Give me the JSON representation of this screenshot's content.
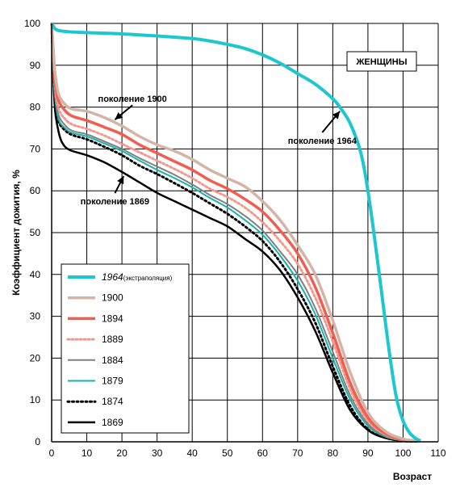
{
  "chart_data": {
    "type": "line",
    "title": "",
    "xlabel": "Возраст",
    "ylabel": "Коэффициент дожития, %",
    "xlim": [
      0,
      110
    ],
    "ylim": [
      0,
      100
    ],
    "xticks": [
      0,
      10,
      20,
      30,
      40,
      50,
      60,
      70,
      80,
      90,
      100,
      110
    ],
    "yticks": [
      0,
      10,
      20,
      30,
      40,
      50,
      60,
      70,
      80,
      90,
      100
    ],
    "grid": true,
    "box_label": "ЖЕНЩИНЫ",
    "legend_position": "bottom-left",
    "annotations": [
      {
        "text": "поколение 1900",
        "x": 23,
        "y": 82,
        "arrow_to": [
          18,
          77
        ]
      },
      {
        "text": "поколение 1964",
        "x": 77,
        "y": 72,
        "arrow_to": [
          82,
          79
        ]
      },
      {
        "text": "поколение 1869",
        "x": 18,
        "y": 57.5,
        "arrow_to": [
          20.5,
          63.5
        ]
      }
    ],
    "series": [
      {
        "name": "1964",
        "name_suffix": "(экстраполяция)",
        "italic": true,
        "color": "#1CC7D0",
        "width": 4,
        "dash": "",
        "x": [
          0,
          0.5,
          1,
          2,
          5,
          10,
          20,
          30,
          40,
          45,
          50,
          55,
          60,
          65,
          70,
          75,
          80,
          82,
          85,
          88,
          90,
          92,
          94,
          96,
          98,
          100,
          102,
          104,
          105
        ],
        "y": [
          100,
          99.3,
          98.7,
          98.3,
          98.0,
          97.8,
          97.5,
          97.0,
          96.4,
          95.8,
          95.0,
          94.0,
          92.5,
          90.5,
          88.0,
          85.5,
          82.0,
          80.0,
          76.0,
          69.0,
          60.0,
          48.0,
          35.0,
          22.0,
          11.0,
          5.0,
          2.0,
          0.6,
          0.3
        ]
      },
      {
        "name": "1900",
        "name_suffix": "",
        "italic": false,
        "color": "#D4B4A6",
        "width": 3.5,
        "dash": "",
        "x": [
          0,
          0.5,
          1,
          2,
          4,
          6,
          10,
          15,
          20,
          25,
          30,
          35,
          40,
          45,
          50,
          55,
          60,
          65,
          70,
          75,
          80,
          85,
          90,
          95,
          100,
          104
        ],
        "y": [
          100,
          93.5,
          88.0,
          83.0,
          80.5,
          79.5,
          79.0,
          77.5,
          75.5,
          73.0,
          71.0,
          69.5,
          67.5,
          65.0,
          63.0,
          61.0,
          57.5,
          53.0,
          47.0,
          40.0,
          29.0,
          16.5,
          7.0,
          2.5,
          0.7,
          0.3
        ]
      },
      {
        "name": "1894",
        "name_suffix": "",
        "italic": false,
        "color": "#F25D50",
        "width": 3.5,
        "dash": "",
        "x": [
          0,
          0.5,
          1,
          2,
          4,
          6,
          10,
          15,
          20,
          25,
          30,
          35,
          40,
          45,
          50,
          55,
          60,
          65,
          70,
          75,
          80,
          85,
          90,
          95,
          100,
          104
        ],
        "y": [
          100,
          92.0,
          86.0,
          81.5,
          79.0,
          77.8,
          76.8,
          75.2,
          73.5,
          71.0,
          69.0,
          67.0,
          65.0,
          62.5,
          60.5,
          58.0,
          55.0,
          50.5,
          45.0,
          37.0,
          26.0,
          14.0,
          5.8,
          2.0,
          0.5,
          0.2
        ]
      },
      {
        "name": "1889",
        "name_suffix": "",
        "italic": false,
        "color": "#F4978D",
        "width": 3,
        "dash": "2,3",
        "x": [
          0,
          0.5,
          1,
          2,
          4,
          6,
          10,
          15,
          20,
          25,
          30,
          35,
          40,
          45,
          50,
          55,
          60,
          65,
          70,
          75,
          80,
          85,
          90,
          95,
          100,
          104
        ],
        "y": [
          100,
          91.0,
          84.5,
          79.5,
          77.0,
          75.8,
          74.8,
          73.2,
          71.2,
          69.2,
          67.2,
          65.2,
          63.0,
          60.5,
          58.5,
          56.0,
          52.5,
          48.0,
          42.5,
          34.5,
          24.0,
          12.5,
          5.0,
          1.7,
          0.4,
          0.2
        ]
      },
      {
        "name": "1884",
        "name_suffix": "",
        "italic": false,
        "color": "#808080",
        "width": 2,
        "dash": "",
        "x": [
          0,
          0.5,
          1,
          2,
          4,
          6,
          10,
          15,
          20,
          25,
          30,
          35,
          40,
          45,
          50,
          55,
          60,
          65,
          70,
          75,
          80,
          85,
          90,
          95,
          100,
          104
        ],
        "y": [
          100,
          90.0,
          83.0,
          78.0,
          75.5,
          74.3,
          73.5,
          71.8,
          70.0,
          67.8,
          65.8,
          63.8,
          61.5,
          59.0,
          56.8,
          54.0,
          50.5,
          45.5,
          40.0,
          32.0,
          21.5,
          11.0,
          4.3,
          1.4,
          0.3,
          0.1
        ]
      },
      {
        "name": "1879",
        "name_suffix": "",
        "italic": false,
        "color": "#17B3AB",
        "width": 2,
        "dash": "",
        "x": [
          0,
          0.5,
          1,
          2,
          4,
          6,
          10,
          15,
          20,
          25,
          30,
          35,
          40,
          45,
          50,
          55,
          60,
          65,
          70,
          75,
          80,
          85,
          90,
          95,
          100,
          104
        ],
        "y": [
          100,
          89.0,
          82.0,
          77.0,
          74.8,
          73.8,
          73.0,
          71.3,
          69.5,
          67.2,
          65.0,
          63.0,
          60.8,
          58.3,
          56.0,
          53.0,
          49.5,
          44.5,
          38.5,
          30.5,
          20.0,
          10.0,
          3.8,
          1.2,
          0.3,
          0.1
        ]
      },
      {
        "name": "1874",
        "name_suffix": "",
        "italic": false,
        "color": "#000000",
        "width": 3,
        "dash": "2,3.5",
        "x": [
          0,
          0.5,
          1,
          2,
          4,
          6,
          10,
          15,
          20,
          25,
          30,
          35,
          40,
          45,
          50,
          55,
          60,
          65,
          70,
          75,
          80,
          85,
          90,
          95,
          100,
          104
        ],
        "y": [
          100,
          88.0,
          81.0,
          76.5,
          74.3,
          73.3,
          72.3,
          70.5,
          68.5,
          66.0,
          64.0,
          61.8,
          59.5,
          57.0,
          54.5,
          51.5,
          48.0,
          43.0,
          36.5,
          28.5,
          18.0,
          8.5,
          3.0,
          1.0,
          0.2,
          0.1
        ]
      },
      {
        "name": "1869",
        "name_suffix": "",
        "italic": false,
        "color": "#000000",
        "width": 2.5,
        "dash": "",
        "x": [
          0,
          0.5,
          1,
          2,
          3,
          5,
          10,
          15,
          20,
          25,
          30,
          35,
          40,
          45,
          50,
          55,
          60,
          65,
          70,
          75,
          80,
          85,
          90,
          95,
          100,
          104
        ],
        "y": [
          100,
          87.0,
          79.0,
          74.0,
          71.5,
          69.8,
          68.5,
          66.8,
          64.5,
          62.0,
          59.5,
          57.5,
          55.5,
          53.5,
          51.5,
          48.5,
          45.5,
          41.0,
          34.5,
          26.5,
          16.5,
          7.5,
          2.8,
          0.9,
          0.2,
          0.1
        ]
      }
    ]
  }
}
